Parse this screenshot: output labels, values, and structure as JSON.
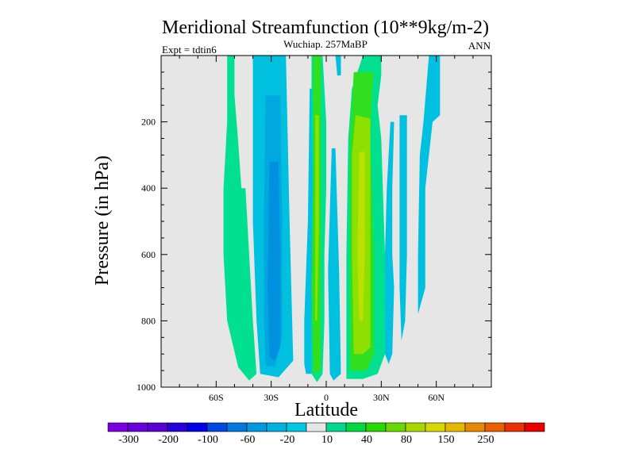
{
  "chart_data": {
    "type": "contour",
    "title": "Meridional Streamfunction (10**9kg/m-2)",
    "subtitle": "Wuchiap. 257MaBP",
    "left_label": "Expt = tdtin6",
    "right_label": "ANN",
    "xlabel": "Latitude",
    "ylabel": "Pressure (in hPa)",
    "xlim": [
      -90,
      90
    ],
    "ylim": [
      1000,
      0
    ],
    "x_ticks": [
      {
        "value": -60,
        "label": "60S"
      },
      {
        "value": -30,
        "label": "30S"
      },
      {
        "value": 0,
        "label": "0"
      },
      {
        "value": 30,
        "label": "30N"
      },
      {
        "value": 60,
        "label": "60N"
      }
    ],
    "y_ticks": [
      {
        "value": 200,
        "label": "200"
      },
      {
        "value": 400,
        "label": "400"
      },
      {
        "value": 600,
        "label": "600"
      },
      {
        "value": 800,
        "label": "800"
      },
      {
        "value": 1000,
        "label": "1000"
      }
    ],
    "background_color": "#e6e6e6",
    "colorbar": {
      "colors": [
        "#7a00e0",
        "#6a00d8",
        "#5a00d0",
        "#2800d8",
        "#0000e8",
        "#0048e0",
        "#0078e0",
        "#0098e0",
        "#00b0e0",
        "#00c8e0",
        "#e6e6e6",
        "#00d890",
        "#00d840",
        "#28d800",
        "#68d800",
        "#a8d800",
        "#d8d800",
        "#e8b800",
        "#e88800",
        "#e86000",
        "#e83000",
        "#e80000"
      ],
      "labels": [
        "-300",
        "-200",
        "-100",
        "-60",
        "-20",
        "10",
        "40",
        "80",
        "150",
        "250"
      ]
    },
    "cells": [
      {
        "level": 10,
        "path": [
          [
            -54,
            0
          ],
          [
            -50,
            0
          ],
          [
            -50,
            120
          ],
          [
            -48,
            260
          ],
          [
            -46,
            420
          ],
          [
            -42,
            600
          ],
          [
            -40,
            800
          ],
          [
            -38,
            960
          ],
          [
            -42,
            980
          ],
          [
            -48,
            940
          ],
          [
            -54,
            800
          ],
          [
            -56,
            600
          ],
          [
            -56,
            400
          ],
          [
            -54,
            200
          ]
        ]
      },
      {
        "level": 10,
        "path": [
          [
            -48,
            400
          ],
          [
            -44,
            400
          ],
          [
            -42,
            600
          ],
          [
            -42,
            760
          ],
          [
            -44,
            880
          ],
          [
            -48,
            870
          ],
          [
            -50,
            760
          ],
          [
            -50,
            600
          ]
        ]
      },
      {
        "level": -20,
        "path": [
          [
            -40,
            0
          ],
          [
            -22,
            0
          ],
          [
            -20,
            500
          ],
          [
            -18,
            920
          ],
          [
            -26,
            970
          ],
          [
            -36,
            960
          ],
          [
            -38,
            800
          ],
          [
            -40,
            500
          ]
        ]
      },
      {
        "level": -20,
        "path": [
          [
            -7,
            100
          ],
          [
            -7,
            960
          ],
          [
            -11,
            960
          ],
          [
            -12,
            930
          ],
          [
            -12,
            800
          ],
          [
            -10,
            500
          ],
          [
            -9,
            100
          ]
        ]
      },
      {
        "level": -60,
        "path": [
          [
            -33,
            120
          ],
          [
            -25,
            120
          ],
          [
            -24,
            500
          ],
          [
            -24,
            850
          ],
          [
            -28,
            940
          ],
          [
            -33,
            935
          ],
          [
            -34,
            800
          ],
          [
            -34,
            500
          ]
        ]
      },
      {
        "level": -100,
        "path": [
          [
            -31,
            320
          ],
          [
            -26,
            320
          ],
          [
            -25,
            600
          ],
          [
            -25,
            880
          ],
          [
            -28,
            920
          ],
          [
            -31,
            910
          ],
          [
            -32,
            700
          ]
        ]
      },
      {
        "level": -20,
        "path": [
          [
            5,
            0
          ],
          [
            8,
            0
          ],
          [
            8,
            60
          ],
          [
            6,
            60
          ]
        ]
      },
      {
        "level": -20,
        "path": [
          [
            3,
            280
          ],
          [
            5,
            280
          ],
          [
            7,
            650
          ],
          [
            8,
            960
          ],
          [
            4,
            980
          ],
          [
            2,
            960
          ],
          [
            1,
            650
          ]
        ]
      },
      {
        "level": 10,
        "path": [
          [
            -8,
            0
          ],
          [
            -2,
            0
          ],
          [
            -1,
            100
          ],
          [
            0,
            200
          ],
          [
            0,
            400
          ],
          [
            -1,
            600
          ],
          [
            -1,
            800
          ],
          [
            -2,
            960
          ],
          [
            -5,
            985
          ],
          [
            -8,
            960
          ],
          [
            -8,
            800
          ],
          [
            -7,
            600
          ],
          [
            -7,
            400
          ],
          [
            -8,
            200
          ]
        ]
      },
      {
        "level": 10,
        "path": [
          [
            20,
            0
          ],
          [
            30,
            0
          ],
          [
            30,
            60
          ],
          [
            28,
            150
          ],
          [
            30,
            250
          ],
          [
            32,
            600
          ],
          [
            32,
            900
          ],
          [
            28,
            960
          ],
          [
            20,
            975
          ],
          [
            11,
            975
          ],
          [
            11,
            600
          ],
          [
            12,
            250
          ],
          [
            14,
            100
          ]
        ]
      },
      {
        "level": 40,
        "path": [
          [
            -7,
            0
          ],
          [
            -3,
            0
          ],
          [
            -3,
            300
          ],
          [
            -3,
            700
          ],
          [
            -3,
            950
          ],
          [
            -7,
            960
          ],
          [
            -8,
            700
          ],
          [
            -7,
            300
          ]
        ]
      },
      {
        "level": 40,
        "path": [
          [
            15,
            50
          ],
          [
            26,
            50
          ],
          [
            25,
            100
          ],
          [
            24,
            250
          ],
          [
            26,
            600
          ],
          [
            26,
            900
          ],
          [
            22,
            950
          ],
          [
            13,
            950
          ],
          [
            13,
            600
          ],
          [
            13,
            250
          ]
        ]
      },
      {
        "level": 80,
        "path": [
          [
            16,
            180
          ],
          [
            24,
            190
          ],
          [
            24,
            600
          ],
          [
            24,
            880
          ],
          [
            20,
            900
          ],
          [
            15,
            900
          ],
          [
            14,
            600
          ],
          [
            14,
            300
          ]
        ]
      },
      {
        "level": 150,
        "path": [
          [
            18,
            290
          ],
          [
            21,
            290
          ],
          [
            21,
            600
          ],
          [
            20,
            800
          ],
          [
            18,
            800
          ],
          [
            17,
            600
          ]
        ]
      },
      {
        "level": 80,
        "path": [
          [
            -6,
            180
          ],
          [
            -4,
            180
          ],
          [
            -4,
            500
          ],
          [
            -5,
            800
          ],
          [
            -6,
            800
          ],
          [
            -6,
            500
          ]
        ]
      },
      {
        "level": -20,
        "path": [
          [
            35,
            200
          ],
          [
            37,
            200
          ],
          [
            36,
            400
          ],
          [
            36,
            600
          ],
          [
            37,
            700
          ],
          [
            36,
            900
          ],
          [
            34,
            930
          ],
          [
            32,
            900
          ],
          [
            32,
            600
          ],
          [
            33,
            400
          ]
        ]
      },
      {
        "level": -20,
        "path": [
          [
            40,
            180
          ],
          [
            44,
            180
          ],
          [
            44,
            400
          ],
          [
            44,
            600
          ],
          [
            43,
            800
          ],
          [
            41,
            860
          ],
          [
            40,
            700
          ],
          [
            40,
            400
          ]
        ]
      },
      {
        "level": -20,
        "path": [
          [
            56,
            0
          ],
          [
            62,
            0
          ],
          [
            62,
            180
          ],
          [
            58,
            200
          ],
          [
            56,
            300
          ],
          [
            54,
            400
          ],
          [
            54,
            700
          ],
          [
            50,
            780
          ],
          [
            50,
            600
          ],
          [
            51,
            300
          ],
          [
            53,
            200
          ]
        ]
      }
    ]
  }
}
